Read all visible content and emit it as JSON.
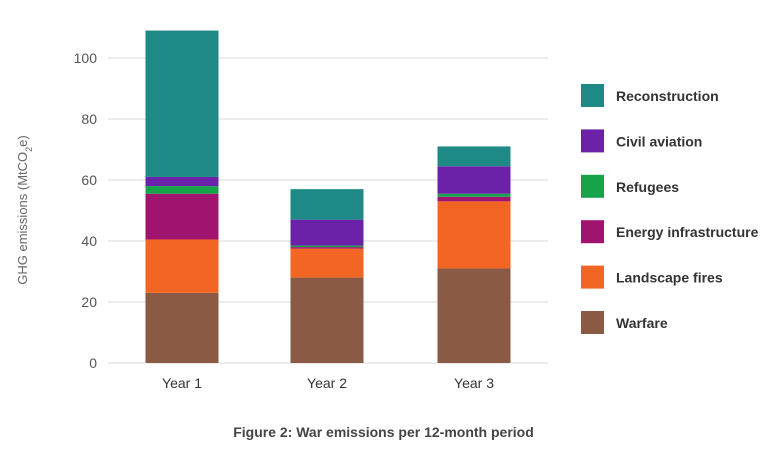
{
  "chart_data": {
    "type": "bar",
    "stacked": true,
    "title": "Figure 2: War emissions per 12-month period",
    "xlabel": "",
    "ylabel_parts": [
      "GHG emissions (MtCO",
      "2",
      "e)"
    ],
    "categories": [
      "Year 1",
      "Year 2",
      "Year 3"
    ],
    "ylim": [
      0,
      110
    ],
    "yticks": [
      0,
      20,
      40,
      60,
      80,
      100
    ],
    "grid": true,
    "legend_position": "right",
    "series": [
      {
        "name": "Warfare",
        "color": "#8b5a45",
        "values": [
          23,
          28,
          31
        ]
      },
      {
        "name": "Landscape fires",
        "color": "#f26522",
        "values": [
          17.5,
          9.5,
          22
        ]
      },
      {
        "name": "Energy infrastructure",
        "color": "#a0136f",
        "values": [
          15,
          0.5,
          1.5
        ]
      },
      {
        "name": "Refugees",
        "color": "#16a34a",
        "values": [
          2.5,
          0.5,
          1
        ]
      },
      {
        "name": "Civil aviation",
        "color": "#6b21a8",
        "values": [
          3,
          8.5,
          9
        ]
      },
      {
        "name": "Reconstruction",
        "color": "#1f8a85",
        "values": [
          48,
          10,
          6.5
        ]
      }
    ]
  }
}
